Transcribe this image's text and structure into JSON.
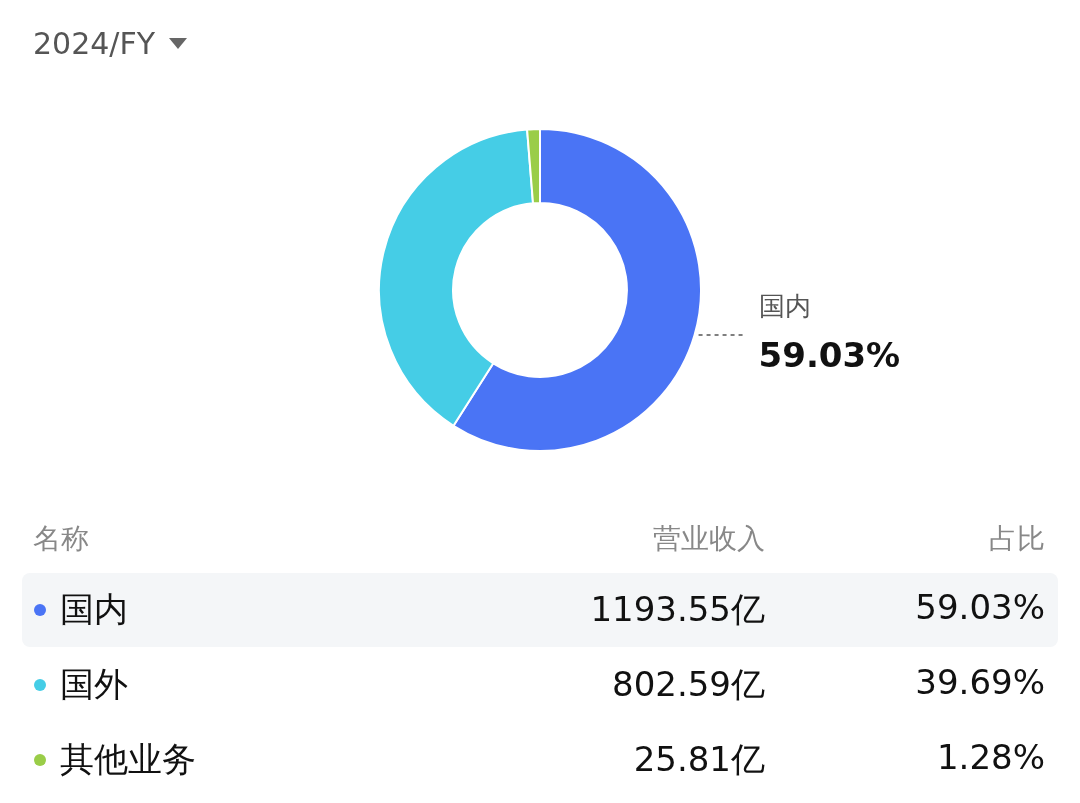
{
  "chart_data": {
    "type": "donut",
    "title": "2024/FY",
    "categories": [
      "国内",
      "国外",
      "其他业务"
    ],
    "values": [
      1193.55,
      802.59,
      25.81
    ],
    "value_labels": [
      "1193.55亿",
      "802.59亿",
      "25.81亿"
    ],
    "colors": [
      "#4a74f5",
      "#45cde6",
      "#9acd48"
    ],
    "legend": "bottom",
    "annotations": [
      "名称",
      "营业收入",
      "占比",
      {
        "text": "59.03%",
        "x": "国内"
      },
      {
        "text": "39.69%",
        "x": "国外"
      },
      {
        "text": "1.28%",
        "x": "其他业务"
      }
    ]
  }
}
